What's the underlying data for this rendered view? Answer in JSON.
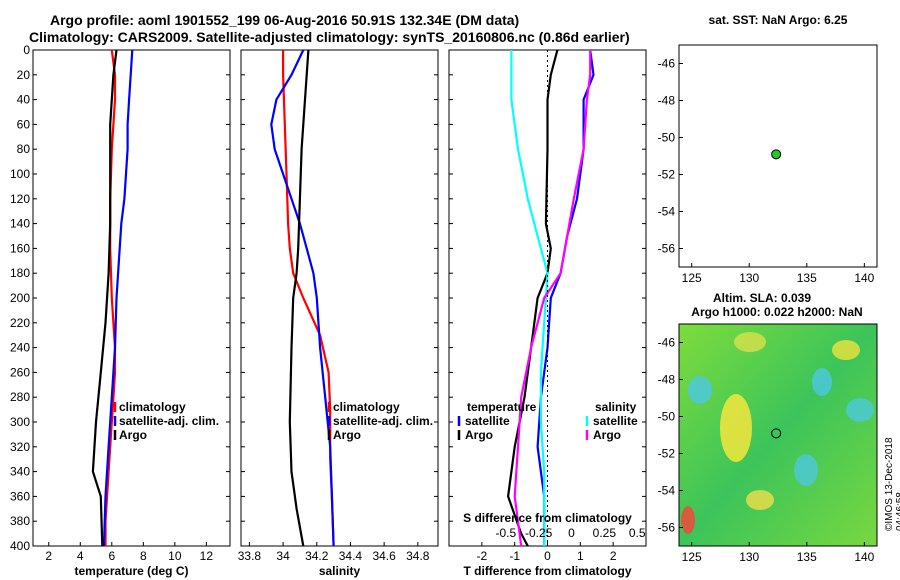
{
  "header": {
    "title_line1": "Argo profile: aoml 1901552_199 06-Aug-2016 50.91S 132.34E (DM data)",
    "title_line2": "Climatology: CARS2009. Satellite-adjusted climatology: synTS_20160806.nc (0.86d earlier)"
  },
  "sst_panel": {
    "title": "sat. SST: NaN Argo: 6.25",
    "lon_ticks": [
      "125",
      "130",
      "135",
      "140"
    ],
    "lat_ticks": [
      "-46",
      "-48",
      "-50",
      "-52",
      "-54",
      "-56"
    ],
    "point_color": "#22cc22"
  },
  "sla_panel": {
    "title1": "Altim. SLA: 0.039",
    "title2": "Argo h1000: 0.022 h2000: NaN",
    "lon_ticks": [
      "125",
      "130",
      "135",
      "140"
    ],
    "lat_ticks": [
      "-46",
      "-48",
      "-50",
      "-52",
      "-54",
      "-56"
    ]
  },
  "stamp": "©IMOS 13-Dec-2018 04:46:58",
  "colors": {
    "climatology": "#ff0000",
    "satellite": "#0000ff",
    "argo": "#000000",
    "sat_sal": "#00ffff",
    "argo_sal": "#ff00ff"
  },
  "chart_data": [
    {
      "type": "line",
      "xlabel": "temperature (deg C)",
      "xlim": [
        1,
        13.5
      ],
      "ylim": [
        0,
        400
      ],
      "xticks": [
        2,
        4,
        6,
        8,
        10,
        12
      ],
      "yticks": [
        0,
        20,
        40,
        60,
        80,
        100,
        120,
        140,
        160,
        180,
        200,
        220,
        240,
        260,
        280,
        300,
        320,
        340,
        360,
        380,
        400
      ],
      "legend": [
        "climatology",
        "satellite-adj. clim.",
        "Argo"
      ],
      "series": [
        {
          "name": "climatology",
          "color": "#ff0000",
          "points": [
            [
              6.0,
              0
            ],
            [
              6.2,
              20
            ],
            [
              6.2,
              40
            ],
            [
              6.0,
              80
            ],
            [
              5.9,
              120
            ],
            [
              5.9,
              160
            ],
            [
              6.0,
              200
            ],
            [
              6.2,
              240
            ],
            [
              6.2,
              260
            ],
            [
              6.0,
              300
            ],
            [
              5.8,
              340
            ],
            [
              5.6,
              380
            ],
            [
              5.6,
              400
            ]
          ]
        },
        {
          "name": "satellite-adj. clim.",
          "color": "#0000ff",
          "points": [
            [
              7.3,
              0
            ],
            [
              7.2,
              20
            ],
            [
              7.1,
              40
            ],
            [
              7.0,
              60
            ],
            [
              7.0,
              80
            ],
            [
              6.9,
              100
            ],
            [
              6.8,
              120
            ],
            [
              6.6,
              140
            ],
            [
              6.5,
              160
            ],
            [
              6.4,
              180
            ],
            [
              6.3,
              200
            ],
            [
              6.2,
              240
            ],
            [
              6.0,
              280
            ],
            [
              5.8,
              320
            ],
            [
              5.6,
              360
            ],
            [
              5.5,
              400
            ]
          ]
        },
        {
          "name": "Argo",
          "color": "#000000",
          "points": [
            [
              6.3,
              0
            ],
            [
              6.1,
              20
            ],
            [
              5.9,
              60
            ],
            [
              5.9,
              100
            ],
            [
              5.9,
              140
            ],
            [
              5.8,
              180
            ],
            [
              5.6,
              220
            ],
            [
              5.3,
              260
            ],
            [
              5.0,
              300
            ],
            [
              4.8,
              340
            ],
            [
              5.3,
              360
            ],
            [
              5.4,
              400
            ]
          ]
        }
      ]
    },
    {
      "type": "line",
      "xlabel": "salinity",
      "xlim": [
        33.75,
        34.92
      ],
      "ylim": [
        0,
        400
      ],
      "xticks": [
        "33.8",
        "34",
        "34.2",
        "34.4",
        "34.6",
        "34.8"
      ],
      "yticks": [
        0,
        20,
        40,
        60,
        80,
        100,
        120,
        140,
        160,
        180,
        200,
        220,
        240,
        260,
        280,
        300,
        320,
        340,
        360,
        380,
        400
      ],
      "legend": [
        "climatology",
        "satellite-adj. clim.",
        "Argo"
      ],
      "series": [
        {
          "name": "climatology",
          "color": "#ff0000",
          "points": [
            [
              34.0,
              0
            ],
            [
              34.0,
              20
            ],
            [
              34.01,
              60
            ],
            [
              34.02,
              100
            ],
            [
              34.03,
              140
            ],
            [
              34.04,
              160
            ],
            [
              34.06,
              180
            ],
            [
              34.12,
              200
            ],
            [
              34.22,
              230
            ],
            [
              34.27,
              260
            ],
            [
              34.28,
              290
            ],
            [
              34.28,
              330
            ],
            [
              34.29,
              360
            ],
            [
              34.3,
              400
            ]
          ]
        },
        {
          "name": "satellite-adj. clim.",
          "color": "#0000ff",
          "points": [
            [
              34.12,
              0
            ],
            [
              34.05,
              20
            ],
            [
              33.96,
              40
            ],
            [
              33.93,
              60
            ],
            [
              33.95,
              80
            ],
            [
              34.0,
              100
            ],
            [
              34.05,
              120
            ],
            [
              34.1,
              140
            ],
            [
              34.14,
              160
            ],
            [
              34.18,
              180
            ],
            [
              34.2,
              200
            ],
            [
              34.22,
              240
            ],
            [
              34.25,
              280
            ],
            [
              34.28,
              320
            ],
            [
              34.29,
              360
            ],
            [
              34.3,
              400
            ]
          ]
        },
        {
          "name": "Argo",
          "color": "#000000",
          "points": [
            [
              34.15,
              0
            ],
            [
              34.13,
              40
            ],
            [
              34.11,
              80
            ],
            [
              34.1,
              120
            ],
            [
              34.09,
              160
            ],
            [
              34.08,
              180
            ],
            [
              34.06,
              200
            ],
            [
              34.05,
              240
            ],
            [
              34.04,
              300
            ],
            [
              34.05,
              340
            ],
            [
              34.08,
              370
            ],
            [
              34.12,
              400
            ]
          ]
        }
      ]
    },
    {
      "type": "line",
      "xlabel": "T difference from climatology",
      "xlabel_top": "S difference from climatology",
      "xlim": [
        -3,
        3
      ],
      "ylim": [
        0,
        400
      ],
      "xticks": [
        "-2",
        "-1",
        "0",
        "1",
        "2"
      ],
      "top_ticks": [
        "-0.5",
        "-0.25",
        "0",
        "0.25",
        "0.5"
      ],
      "yticks": [
        0,
        20,
        40,
        60,
        80,
        100,
        120,
        140,
        160,
        180,
        200,
        220,
        240,
        260,
        280,
        300,
        320,
        340,
        360,
        380,
        400
      ],
      "legend_temp_header": "temperature",
      "legend_sal_header": "salinity",
      "legend_temp": [
        "satellite",
        "Argo"
      ],
      "legend_sal": [
        "satellite",
        "Argo"
      ],
      "series": [
        {
          "name": "T satellite",
          "color": "#0000ff",
          "points": [
            [
              1.3,
              0
            ],
            [
              1.4,
              20
            ],
            [
              1.1,
              40
            ],
            [
              1.1,
              80
            ],
            [
              0.9,
              120
            ],
            [
              0.6,
              150
            ],
            [
              0.4,
              180
            ],
            [
              0.1,
              200
            ],
            [
              0.0,
              240
            ],
            [
              -0.2,
              280
            ],
            [
              -0.3,
              320
            ],
            [
              -0.1,
              360
            ],
            [
              -0.1,
              400
            ]
          ]
        },
        {
          "name": "T Argo",
          "color": "#000000",
          "points": [
            [
              0.3,
              0
            ],
            [
              0.1,
              20
            ],
            [
              0.0,
              40
            ],
            [
              0.0,
              80
            ],
            [
              -0.05,
              140
            ],
            [
              0.1,
              160
            ],
            [
              0.0,
              180
            ],
            [
              -0.3,
              200
            ],
            [
              -0.5,
              240
            ],
            [
              -0.7,
              280
            ],
            [
              -1.0,
              320
            ],
            [
              -1.2,
              360
            ],
            [
              -0.8,
              390
            ],
            [
              -0.6,
              400
            ]
          ]
        },
        {
          "name": "S satellite",
          "color": "#00ffff",
          "points": [
            [
              -1.1,
              0
            ],
            [
              -1.1,
              40
            ],
            [
              -0.9,
              80
            ],
            [
              -0.6,
              120
            ],
            [
              -0.3,
              150
            ],
            [
              0.0,
              180
            ],
            [
              -0.1,
              220
            ],
            [
              -0.2,
              260
            ],
            [
              -0.2,
              300
            ],
            [
              -0.1,
              340
            ],
            [
              -0.1,
              400
            ]
          ]
        },
        {
          "name": "S Argo",
          "color": "#ff00ff",
          "points": [
            [
              1.3,
              0
            ],
            [
              1.3,
              20
            ],
            [
              1.2,
              40
            ],
            [
              1.1,
              80
            ],
            [
              0.8,
              120
            ],
            [
              0.6,
              150
            ],
            [
              0.4,
              180
            ],
            [
              -0.1,
              200
            ],
            [
              -0.5,
              240
            ],
            [
              -0.8,
              280
            ],
            [
              -0.9,
              320
            ],
            [
              -1.0,
              360
            ],
            [
              -0.8,
              400
            ]
          ]
        }
      ]
    }
  ],
  "sst_point": {
    "lon": 132.34,
    "lat": -50.91
  },
  "sla_point": {
    "lon": 132.34,
    "lat": -50.91
  }
}
